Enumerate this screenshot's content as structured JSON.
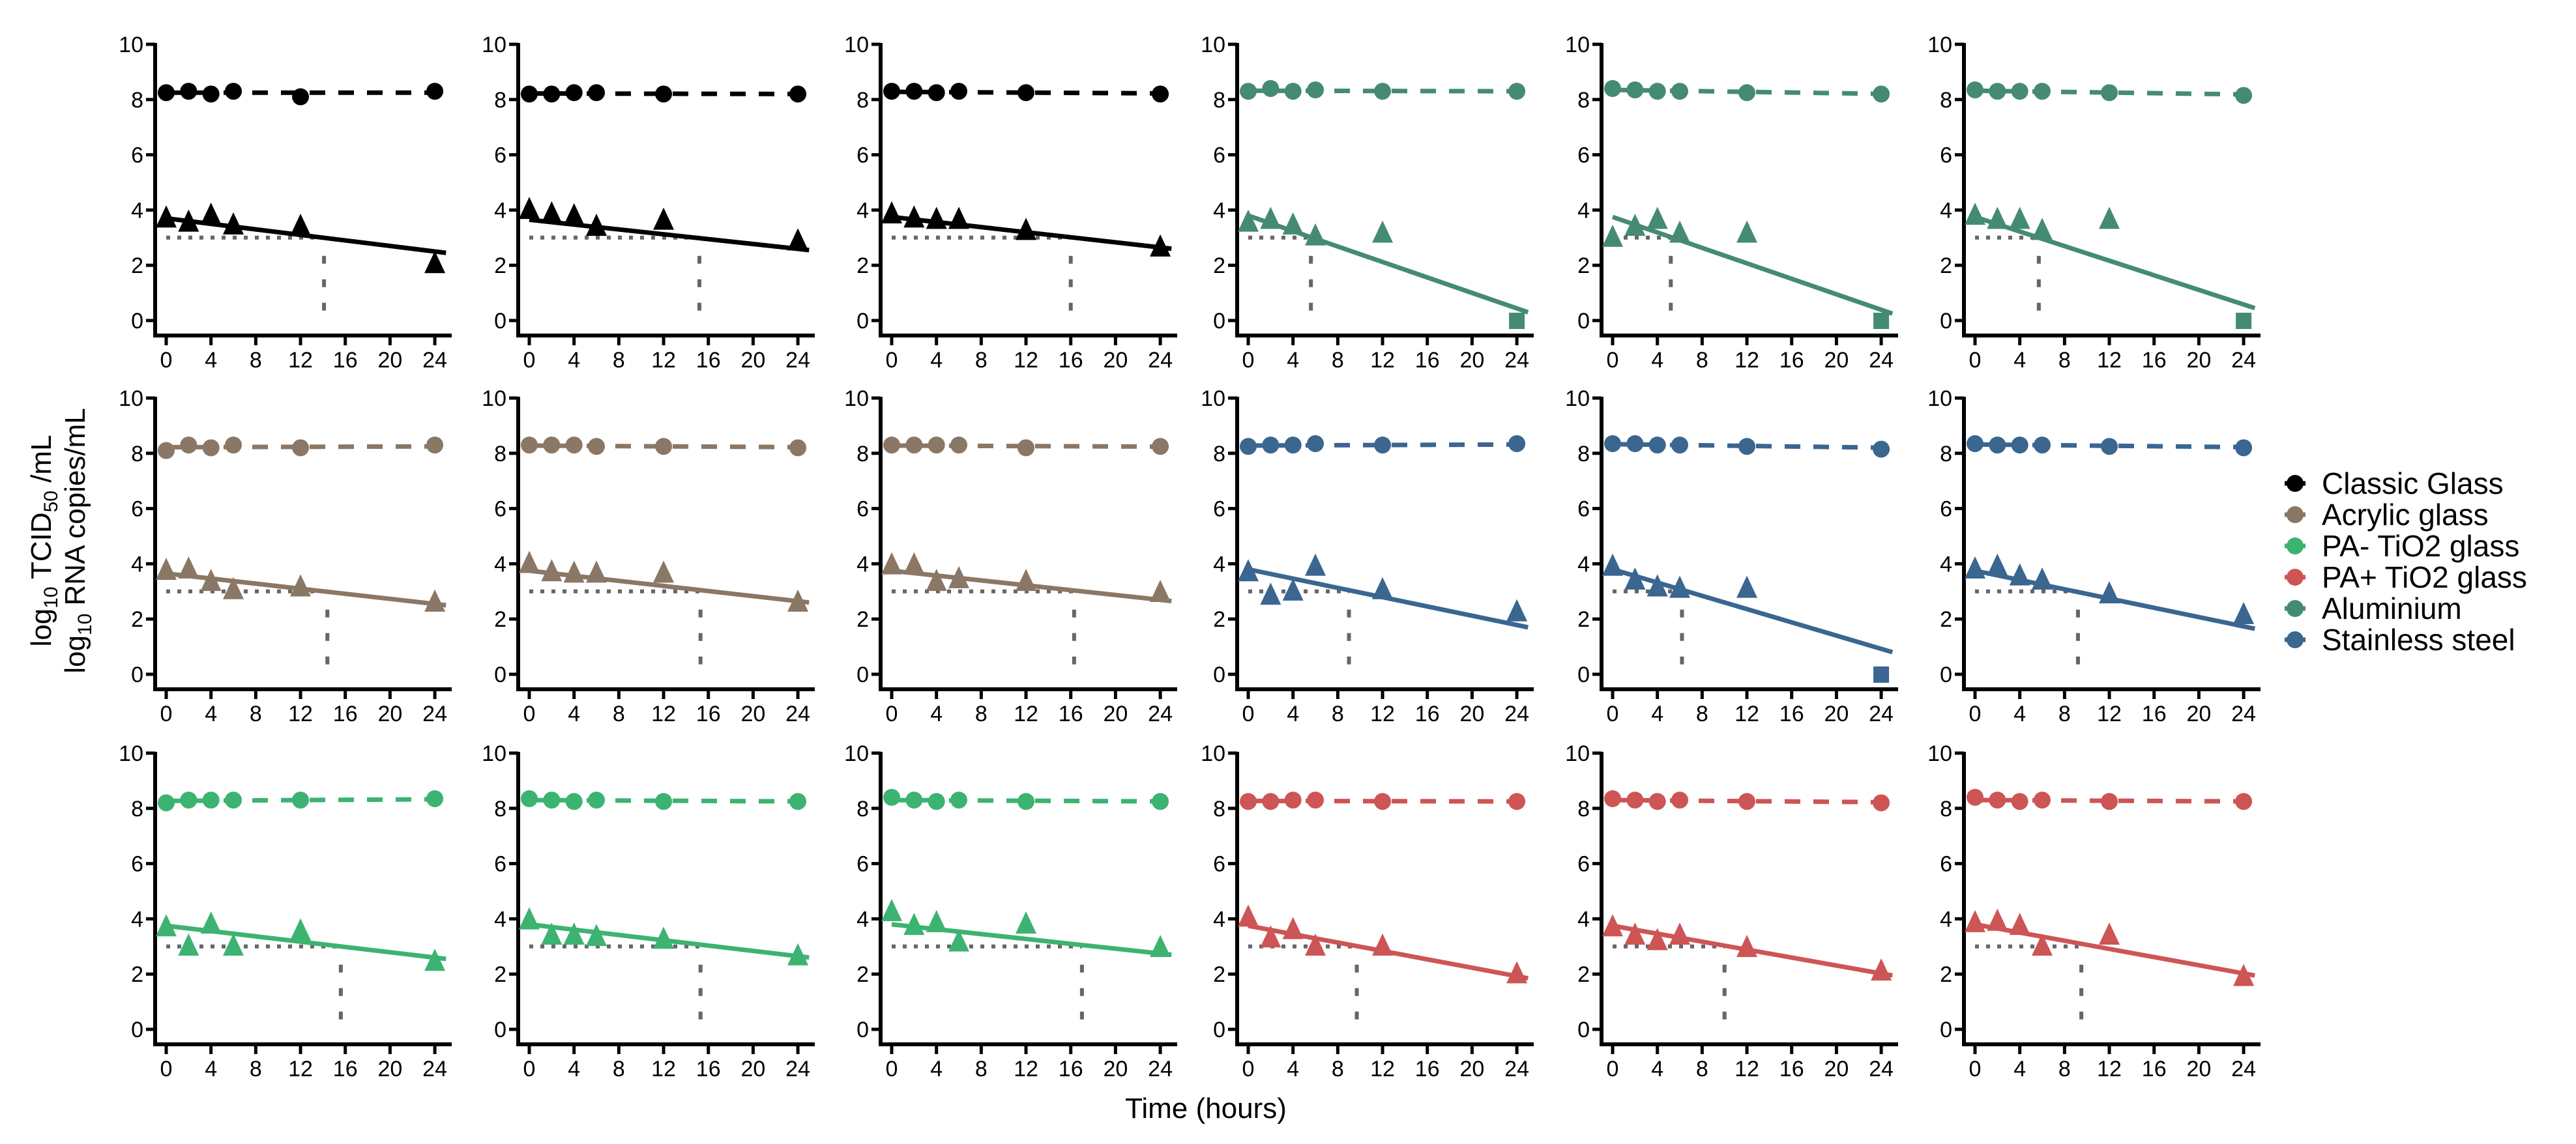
{
  "chart_data": {
    "type": "scatter",
    "layout": "3x6 small multiples",
    "xlabel": "Time (hours)",
    "ylabel_lines": [
      {
        "prefix": "log",
        "sub": "10",
        "mid": " TCID",
        "sub2": "50",
        "suffix": " /mL"
      },
      {
        "prefix": "log",
        "sub": "10",
        "mid": " RNA copies/mL",
        "sub2": "",
        "suffix": ""
      }
    ],
    "xlim": [
      -1,
      26
    ],
    "ylim": [
      -0.4,
      10
    ],
    "x_ticks": [
      "0",
      "4",
      "8",
      "12",
      "16",
      "20",
      "24"
    ],
    "y_ticks": [
      "0",
      "2",
      "4",
      "6",
      "8",
      "10"
    ],
    "x": [
      0,
      2,
      4,
      6,
      12,
      24
    ],
    "detection_limit": 3,
    "legend_position": "right",
    "legend": [
      {
        "label": "Classic Glass",
        "color": "#000000"
      },
      {
        "label": "Acrylic glass",
        "color": "#8B7765"
      },
      {
        "label": "PA- TiO2 glass",
        "color": "#3CB371"
      },
      {
        "label": "PA+ TiO2 glass",
        "color": "#CD5555"
      },
      {
        "label": "Aluminium",
        "color": "#458B74"
      },
      {
        "label": "Stainless steel",
        "color": "#3A6690"
      }
    ],
    "panels": [
      {
        "material": "Classic Glass",
        "rna": [
          8.25,
          8.3,
          8.2,
          8.3,
          8.1,
          8.3
        ],
        "rna_fit": [
          8.25,
          8.25
        ],
        "infectious": [
          3.65,
          3.5,
          3.75,
          3.4,
          3.35,
          2.0
        ],
        "fit": [
          3.7,
          2.45
        ],
        "cross_x": 14.1,
        "zero_at_24": false
      },
      {
        "material": "Classic Glass",
        "rna": [
          8.2,
          8.2,
          8.25,
          8.25,
          8.2,
          8.2
        ],
        "rna_fit": [
          8.22,
          8.2
        ],
        "infectious": [
          3.96,
          3.8,
          3.73,
          3.35,
          3.57,
          2.82
        ],
        "fit": [
          3.65,
          2.55
        ],
        "cross_x": 15.2,
        "zero_at_24": false
      },
      {
        "material": "Classic Glass",
        "rna": [
          8.3,
          8.3,
          8.25,
          8.3,
          8.25,
          8.2
        ],
        "rna_fit": [
          8.28,
          8.22
        ],
        "infectious": [
          3.8,
          3.65,
          3.6,
          3.6,
          3.2,
          2.6
        ],
        "fit": [
          3.75,
          2.6
        ],
        "cross_x": 16.0,
        "zero_at_24": false
      },
      {
        "material": "Aluminium",
        "rna": [
          8.3,
          8.4,
          8.3,
          8.35,
          8.3,
          8.3
        ],
        "rna_fit": [
          8.32,
          8.3
        ],
        "infectious": [
          3.5,
          3.6,
          3.4,
          3.0,
          3.1
        ],
        "fit": [
          3.8,
          0.3
        ],
        "cross_x": 5.6,
        "zero_at_24": true
      },
      {
        "material": "Aluminium",
        "rna": [
          8.4,
          8.35,
          8.3,
          8.3,
          8.25,
          8.2
        ],
        "rna_fit": [
          8.35,
          8.2
        ],
        "infectious": [
          2.95,
          3.35,
          3.6,
          3.1,
          3.1
        ],
        "fit": [
          3.75,
          0.25
        ],
        "cross_x": 5.2,
        "zero_at_24": true
      },
      {
        "material": "Aluminium",
        "rna": [
          8.35,
          8.3,
          8.3,
          8.3,
          8.25,
          8.15
        ],
        "rna_fit": [
          8.32,
          8.18
        ],
        "infectious": [
          3.75,
          3.6,
          3.6,
          3.2,
          3.6
        ],
        "fit": [
          3.75,
          0.45
        ],
        "cross_x": 5.7,
        "zero_at_24": true
      },
      {
        "material": "Acrylic glass",
        "rna": [
          8.1,
          8.3,
          8.2,
          8.3,
          8.2,
          8.3
        ],
        "rna_fit": [
          8.22,
          8.25
        ],
        "infectious": [
          3.7,
          3.75,
          3.3,
          3.0,
          3.1,
          2.55
        ],
        "fit": [
          3.65,
          2.5
        ],
        "cross_x": 14.4,
        "zero_at_24": false
      },
      {
        "material": "Acrylic glass",
        "rna": [
          8.3,
          8.3,
          8.3,
          8.25,
          8.25,
          8.2
        ],
        "rna_fit": [
          8.28,
          8.22
        ],
        "infectious": [
          3.95,
          3.65,
          3.6,
          3.6,
          3.6,
          2.55
        ],
        "fit": [
          3.75,
          2.6
        ],
        "cross_x": 15.3,
        "zero_at_24": false
      },
      {
        "material": "Acrylic glass",
        "rna": [
          8.3,
          8.3,
          8.3,
          8.3,
          8.2,
          8.25
        ],
        "rna_fit": [
          8.28,
          8.24
        ],
        "infectious": [
          3.9,
          3.9,
          3.3,
          3.4,
          3.3,
          2.9
        ],
        "fit": [
          3.75,
          2.65
        ],
        "cross_x": 16.3,
        "zero_at_24": false
      },
      {
        "material": "Stainless steel",
        "rna": [
          8.25,
          8.3,
          8.3,
          8.35,
          8.3,
          8.35
        ],
        "rna_fit": [
          8.28,
          8.32
        ],
        "infectious": [
          3.65,
          2.8,
          2.95,
          3.85,
          3.0,
          2.2
        ],
        "fit": [
          3.8,
          1.7
        ],
        "cross_x": 9.0,
        "zero_at_24": false
      },
      {
        "material": "Stainless steel",
        "rna": [
          8.35,
          8.35,
          8.3,
          8.3,
          8.25,
          8.15
        ],
        "rna_fit": [
          8.33,
          8.2
        ],
        "infectious": [
          3.85,
          3.35,
          3.1,
          3.05,
          3.05
        ],
        "fit": [
          3.8,
          0.8
        ],
        "cross_x": 6.2,
        "zero_at_24": true
      },
      {
        "material": "Stainless steel",
        "rna": [
          8.35,
          8.3,
          8.3,
          8.3,
          8.25,
          8.2
        ],
        "rna_fit": [
          8.32,
          8.22
        ],
        "infectious": [
          3.75,
          3.85,
          3.5,
          3.35,
          2.85,
          2.1
        ],
        "fit": [
          3.75,
          1.65
        ],
        "cross_x": 9.2,
        "zero_at_24": false
      },
      {
        "material": "PA- TiO2 glass",
        "rna": [
          8.2,
          8.3,
          8.3,
          8.3,
          8.3,
          8.35
        ],
        "rna_fit": [
          8.27,
          8.33
        ],
        "infectious": [
          3.65,
          2.95,
          3.75,
          2.95,
          3.5,
          2.4
        ],
        "fit": [
          3.75,
          2.55
        ],
        "cross_x": 15.6,
        "zero_at_24": false
      },
      {
        "material": "PA- TiO2 glass",
        "rna": [
          8.35,
          8.3,
          8.25,
          8.3,
          8.25,
          8.25
        ],
        "rna_fit": [
          8.3,
          8.25
        ],
        "infectious": [
          3.9,
          3.35,
          3.35,
          3.3,
          3.2,
          2.6
        ],
        "fit": [
          3.8,
          2.6
        ],
        "cross_x": 15.3,
        "zero_at_24": false
      },
      {
        "material": "PA- TiO2 glass",
        "rna": [
          8.4,
          8.3,
          8.25,
          8.3,
          8.25,
          8.25
        ],
        "rna_fit": [
          8.3,
          8.25
        ],
        "infectious": [
          4.2,
          3.7,
          3.8,
          3.1,
          3.75,
          2.9
        ],
        "fit": [
          3.8,
          2.7
        ],
        "cross_x": 17.0,
        "zero_at_24": false
      },
      {
        "material": "PA+ TiO2 glass",
        "rna": [
          8.25,
          8.25,
          8.3,
          8.3,
          8.25,
          8.25
        ],
        "rna_fit": [
          8.27,
          8.25
        ],
        "infectious": [
          4.0,
          3.25,
          3.55,
          2.95,
          2.95,
          1.95
        ],
        "fit": [
          3.75,
          1.85
        ],
        "cross_x": 9.7,
        "zero_at_24": false
      },
      {
        "material": "PA+ TiO2 glass",
        "rna": [
          8.35,
          8.3,
          8.25,
          8.3,
          8.25,
          8.2
        ],
        "rna_fit": [
          8.3,
          8.22
        ],
        "infectious": [
          3.65,
          3.35,
          3.15,
          3.35,
          2.9,
          2.05
        ],
        "fit": [
          3.75,
          1.95
        ],
        "cross_x": 10.0,
        "zero_at_24": false
      },
      {
        "material": "PA+ TiO2 glass",
        "rna": [
          8.4,
          8.3,
          8.25,
          8.3,
          8.25,
          8.25
        ],
        "rna_fit": [
          8.3,
          8.25
        ],
        "infectious": [
          3.8,
          3.85,
          3.7,
          2.95,
          3.35,
          1.85
        ],
        "fit": [
          3.8,
          1.95
        ],
        "cross_x": 9.5,
        "zero_at_24": false
      }
    ]
  }
}
